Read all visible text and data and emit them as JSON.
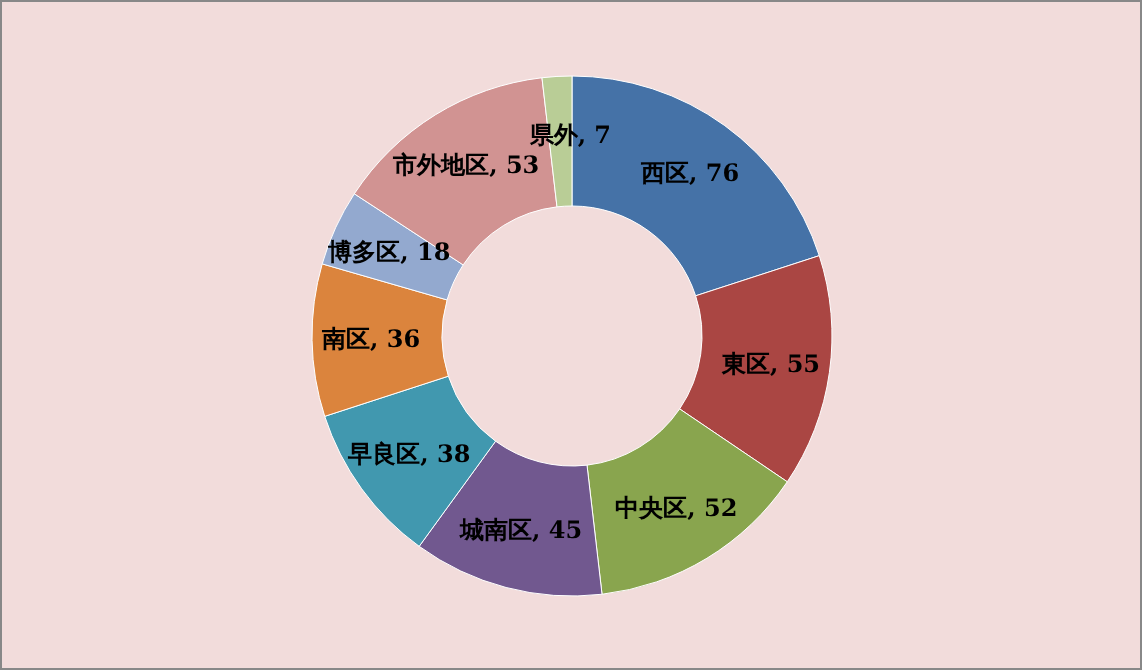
{
  "chart_data": {
    "type": "donut",
    "categories": [
      "西区",
      "東区",
      "中央区",
      "城南区",
      "早良区",
      "南区",
      "博多区",
      "市外地区",
      "県外"
    ],
    "values": [
      76,
      55,
      52,
      45,
      38,
      36,
      18,
      53,
      7
    ],
    "colors": [
      "#4572a7",
      "#aa4643",
      "#89a54e",
      "#71588f",
      "#4198af",
      "#db843d",
      "#93a9cf",
      "#d19392",
      "#b9cd96"
    ],
    "value_labels": [
      ", 76",
      ", 55",
      ", 52",
      ", 45",
      ", 38",
      ", 36",
      ", 18",
      ", 53",
      ", 7"
    ],
    "legend": false
  }
}
